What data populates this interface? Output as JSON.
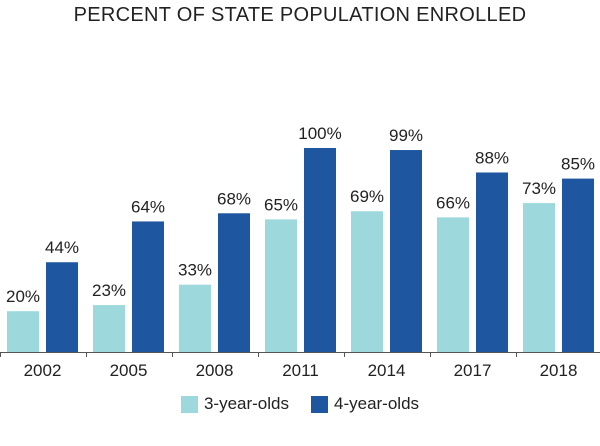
{
  "chart_data": {
    "type": "bar",
    "title": "PERCENT OF STATE POPULATION ENROLLED",
    "categories": [
      "2002",
      "2005",
      "2008",
      "2011",
      "2014",
      "2017",
      "2018"
    ],
    "series": [
      {
        "name": "3-year-olds",
        "color": "#9dd9dc",
        "values": [
          20,
          23,
          33,
          65,
          69,
          66,
          73
        ],
        "labels": [
          "20%",
          "23%",
          "33%",
          "65%",
          "69%",
          "66%",
          "73%"
        ]
      },
      {
        "name": "4-year-olds",
        "color": "#1f56a0",
        "values": [
          44,
          64,
          68,
          100,
          99,
          88,
          85
        ],
        "labels": [
          "44%",
          "64%",
          "68%",
          "100%",
          "99%",
          "88%",
          "85%"
        ]
      }
    ],
    "ylim": [
      0,
      100
    ],
    "grid": false,
    "legend": "bottom"
  }
}
